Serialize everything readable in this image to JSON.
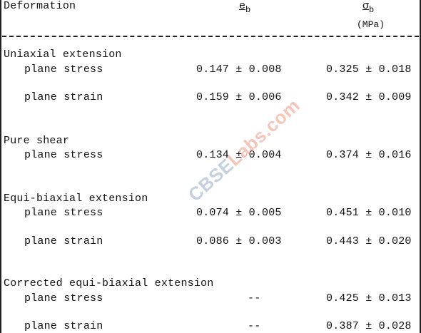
{
  "table": {
    "header": {
      "deformation": "Deformation",
      "eb_symbol": "e",
      "eb_subscript": "b",
      "sigma_symbol": "σ",
      "sigma_subscript": "b",
      "sigma_unit": "(MPa)"
    },
    "groups": [
      {
        "name": "Uniaxial extension",
        "rows": [
          {
            "condition": "plane stress",
            "eb": "0.147 ± 0.008",
            "sigma": "0.325 ± 0.018"
          },
          {
            "condition": "plane strain",
            "eb": "0.159 ± 0.006",
            "sigma": "0.342 ± 0.009"
          }
        ]
      },
      {
        "name": "Pure shear",
        "rows": [
          {
            "condition": "plane stress",
            "eb": "0.134 ± 0.004",
            "sigma": "0.374 ± 0.016"
          }
        ]
      },
      {
        "name": "Equi-biaxial extension",
        "rows": [
          {
            "condition": "plane stress",
            "eb": "0.074 ± 0.005",
            "sigma": "0.451 ± 0.010"
          },
          {
            "condition": "plane strain",
            "eb": "0.086 ± 0.003",
            "sigma": "0.443 ± 0.020"
          }
        ]
      },
      {
        "name": "Corrected equi-biaxial extension",
        "rows": [
          {
            "condition": "plane stress",
            "eb": "--",
            "sigma": "0.425 ± 0.013"
          },
          {
            "condition": "plane strain",
            "eb": "--",
            "sigma": "0.387 ± 0.028"
          }
        ]
      }
    ]
  },
  "watermark": {
    "text_a": "CBSE",
    "text_b": "Labs.com"
  }
}
